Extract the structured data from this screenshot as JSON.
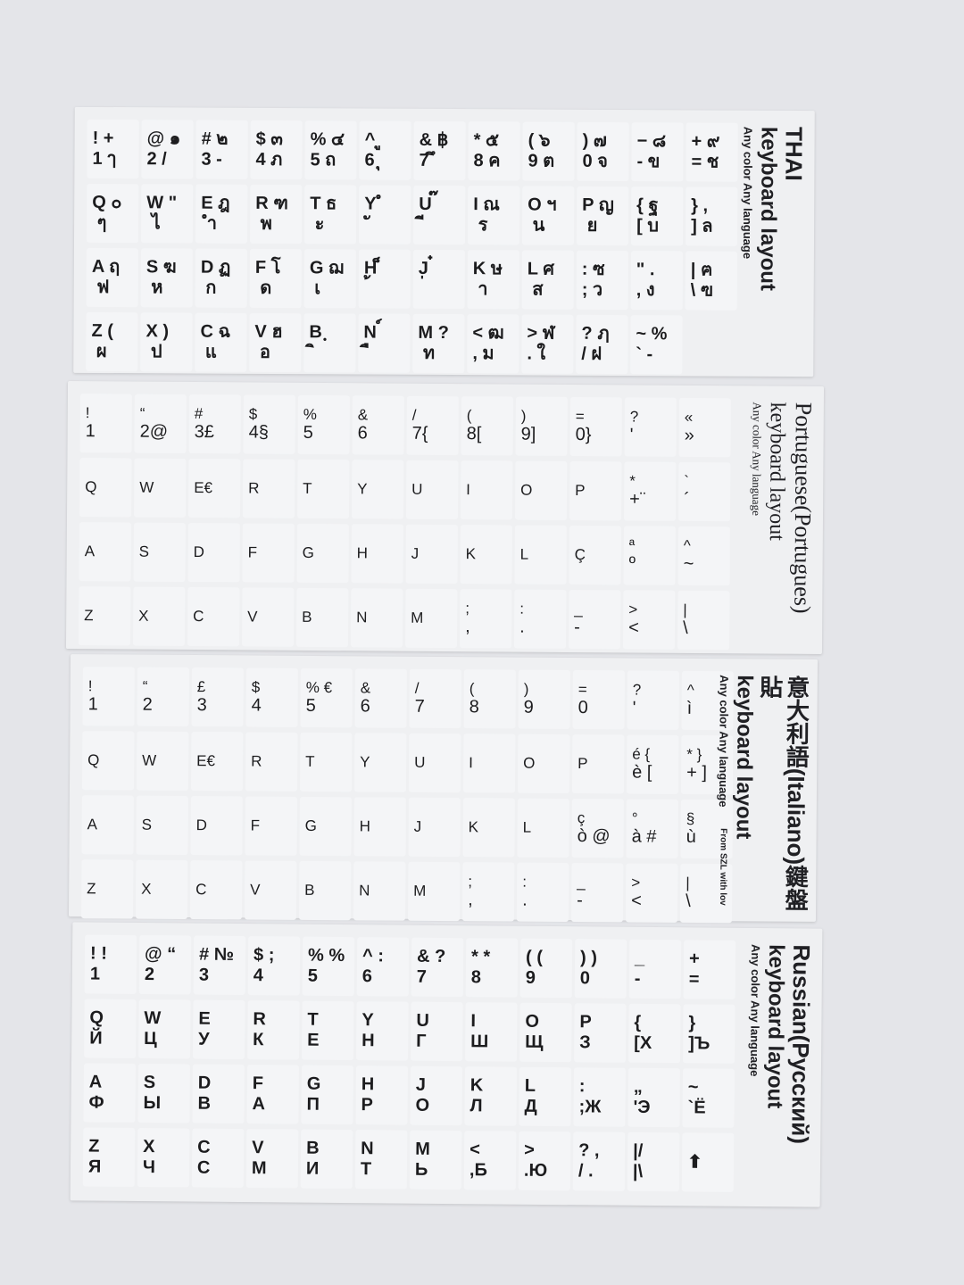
{
  "colors": {
    "background": "#e4e5e9",
    "sheet": "#eff0f2",
    "ink": "#1c1c1e"
  },
  "sheets": [
    {
      "title": "THAI",
      "subtitle": "keyboard layout",
      "tagline": "Any color Any language",
      "rows": [
        [
          [
            "! +",
            "1 ๅ"
          ],
          [
            "@ ๑",
            "2 /"
          ],
          [
            "# ๒",
            "3 -"
          ],
          [
            "$ ๓",
            "4 ภ"
          ],
          [
            "% ๔",
            "5 ถ"
          ],
          [
            "^ ู",
            "6 ุ"
          ],
          [
            "& ฿",
            "7 ึ"
          ],
          [
            "* ๕",
            "8 ค"
          ],
          [
            "( ๖",
            "9 ต"
          ],
          [
            ") ๗",
            "0 จ"
          ],
          [
            "− ๘",
            "- ข"
          ],
          [
            "+ ๙",
            "= ช"
          ]
        ],
        [
          [
            "Q ๐",
            " ๆ"
          ],
          [
            "W \"",
            " ไ"
          ],
          [
            "E ฎ",
            " ำ"
          ],
          [
            "R ฑ",
            " พ"
          ],
          [
            "T ธ",
            " ะ"
          ],
          [
            "Y ํ",
            " ั"
          ],
          [
            "U ๊",
            " ี"
          ],
          [
            "I ณ",
            " ร"
          ],
          [
            "O ฯ",
            " น"
          ],
          [
            "P ญ",
            " ย"
          ],
          [
            "{ ฐ",
            "[ บ"
          ],
          [
            "} ,",
            "] ล"
          ]
        ],
        [
          [
            "A ฤ",
            " ฟ"
          ],
          [
            "S ฆ",
            " ห"
          ],
          [
            "D ฏ",
            " ก"
          ],
          [
            "F โ",
            " ด"
          ],
          [
            "G ฌ",
            " เ"
          ],
          [
            "H ็",
            " ้"
          ],
          [
            "J ๋",
            " ่"
          ],
          [
            "K ษ",
            " า"
          ],
          [
            "L ศ",
            " ส"
          ],
          [
            ": ซ",
            "; ว"
          ],
          [
            "\" .",
            ", ง"
          ],
          [
            "| ฅ",
            "\\ ฃ"
          ]
        ],
        [
          [
            "Z (",
            " ผ"
          ],
          [
            "X )",
            " ป"
          ],
          [
            "C ฉ",
            " แ"
          ],
          [
            "V ฮ",
            " อ"
          ],
          [
            "B ฺ",
            " ิ"
          ],
          [
            "N ์",
            " ื"
          ],
          [
            "M ?",
            " ท"
          ],
          [
            "< ฒ",
            ", ม"
          ],
          [
            "> ฬ",
            ". ใ"
          ],
          [
            "? ฦ",
            "/ ฝ"
          ],
          [
            "~ %",
            "` -"
          ]
        ]
      ]
    },
    {
      "title": "Portuguese(Portugues)",
      "subtitle": "keyboard layout",
      "tagline": "Any color Any language",
      "rows": [
        [
          [
            "!",
            "1"
          ],
          [
            "“",
            "2@"
          ],
          [
            "#",
            "3£"
          ],
          [
            "$",
            "4§"
          ],
          [
            "%",
            "5"
          ],
          [
            "&",
            "6"
          ],
          [
            "/",
            "7{"
          ],
          [
            "(",
            "8["
          ],
          [
            ")",
            "9]"
          ],
          [
            "=",
            "0}"
          ],
          [
            "?",
            "'"
          ],
          [
            "«",
            "»"
          ]
        ],
        [
          [
            "Q",
            ""
          ],
          [
            "W",
            ""
          ],
          [
            "E€",
            ""
          ],
          [
            "R",
            ""
          ],
          [
            "T",
            ""
          ],
          [
            "Y",
            ""
          ],
          [
            "U",
            ""
          ],
          [
            "I",
            ""
          ],
          [
            "O",
            ""
          ],
          [
            "P",
            ""
          ],
          [
            "*",
            "+¨"
          ],
          [
            "`",
            "´"
          ]
        ],
        [
          [
            "A",
            ""
          ],
          [
            "S",
            ""
          ],
          [
            "D",
            ""
          ],
          [
            "F",
            ""
          ],
          [
            "G",
            ""
          ],
          [
            "H",
            ""
          ],
          [
            "J",
            ""
          ],
          [
            "K",
            ""
          ],
          [
            "L",
            ""
          ],
          [
            "Ç",
            ""
          ],
          [
            "ª",
            "º"
          ],
          [
            "^",
            "~"
          ]
        ],
        [
          [
            "Z",
            ""
          ],
          [
            "X",
            ""
          ],
          [
            "C",
            ""
          ],
          [
            "V",
            ""
          ],
          [
            "B",
            ""
          ],
          [
            "N",
            ""
          ],
          [
            "M",
            ""
          ],
          [
            ";",
            ","
          ],
          [
            ":",
            "."
          ],
          [
            "_",
            "-"
          ],
          [
            ">",
            "<"
          ],
          [
            "|",
            "\\"
          ]
        ]
      ]
    },
    {
      "title": "意大利語(Italiano)鍵盤貼",
      "subtitle": "keyboard layout",
      "tagline": "Any color Any language",
      "note": "From SZL with lov",
      "rows": [
        [
          [
            "!",
            "1"
          ],
          [
            "“",
            "2"
          ],
          [
            "£",
            "3"
          ],
          [
            "$",
            "4"
          ],
          [
            "% €",
            "5"
          ],
          [
            "&",
            "6"
          ],
          [
            "/",
            "7"
          ],
          [
            "(",
            "8"
          ],
          [
            ")",
            "9"
          ],
          [
            "=",
            "0"
          ],
          [
            "?",
            "'"
          ],
          [
            "^",
            "ì"
          ]
        ],
        [
          [
            "Q",
            ""
          ],
          [
            "W",
            ""
          ],
          [
            "E€",
            ""
          ],
          [
            "R",
            ""
          ],
          [
            "T",
            ""
          ],
          [
            "Y",
            ""
          ],
          [
            "U",
            ""
          ],
          [
            "I",
            ""
          ],
          [
            "O",
            ""
          ],
          [
            "P",
            ""
          ],
          [
            "é {",
            "è ["
          ],
          [
            "* }",
            "+ ]"
          ]
        ],
        [
          [
            "A",
            ""
          ],
          [
            "S",
            ""
          ],
          [
            "D",
            ""
          ],
          [
            "F",
            ""
          ],
          [
            "G",
            ""
          ],
          [
            "H",
            ""
          ],
          [
            "J",
            ""
          ],
          [
            "K",
            ""
          ],
          [
            "L",
            ""
          ],
          [
            "ç",
            "ò @"
          ],
          [
            "°",
            "à #"
          ],
          [
            "§",
            "ù"
          ]
        ],
        [
          [
            "Z",
            ""
          ],
          [
            "X",
            ""
          ],
          [
            "C",
            ""
          ],
          [
            "V",
            ""
          ],
          [
            "B",
            ""
          ],
          [
            "N",
            ""
          ],
          [
            "M",
            ""
          ],
          [
            ";",
            ","
          ],
          [
            ":",
            "."
          ],
          [
            "_",
            "-"
          ],
          [
            ">",
            "<"
          ],
          [
            "|",
            "\\"
          ]
        ]
      ]
    },
    {
      "title": "Russian(Русский)",
      "subtitle": "keyboard layout",
      "tagline": "Any color Any language",
      "rows": [
        [
          [
            "! !",
            "1"
          ],
          [
            "@ “",
            "2"
          ],
          [
            "# №",
            "3"
          ],
          [
            "$ ;",
            "4"
          ],
          [
            "% %",
            "5"
          ],
          [
            "^ :",
            "6"
          ],
          [
            "& ?",
            "7"
          ],
          [
            "* *",
            "8"
          ],
          [
            "( (",
            "9"
          ],
          [
            ") )",
            "0"
          ],
          [
            "_",
            "-"
          ],
          [
            "+",
            "="
          ]
        ],
        [
          [
            "Q",
            "Й"
          ],
          [
            "W",
            "Ц"
          ],
          [
            "E",
            "У"
          ],
          [
            "R",
            "К"
          ],
          [
            "T",
            "Е"
          ],
          [
            "Y",
            "Н"
          ],
          [
            "U",
            "Г"
          ],
          [
            "I",
            "Ш"
          ],
          [
            "O",
            "Щ"
          ],
          [
            "P",
            "З"
          ],
          [
            "{",
            "[Х"
          ],
          [
            "}",
            "]Ъ"
          ]
        ],
        [
          [
            "A",
            "Ф"
          ],
          [
            "S",
            "Ы"
          ],
          [
            "D",
            "В"
          ],
          [
            "F",
            "А"
          ],
          [
            "G",
            "П"
          ],
          [
            "H",
            "Р"
          ],
          [
            "J",
            "О"
          ],
          [
            "K",
            "Л"
          ],
          [
            "L",
            "Д"
          ],
          [
            ":",
            ";Ж"
          ],
          [
            "„",
            "'Э"
          ],
          [
            "~",
            "`Ё"
          ]
        ],
        [
          [
            "Z",
            "Я"
          ],
          [
            "X",
            "Ч"
          ],
          [
            "C",
            "С"
          ],
          [
            "V",
            "М"
          ],
          [
            "B",
            "И"
          ],
          [
            "N",
            "Т"
          ],
          [
            "M",
            "Ь"
          ],
          [
            "<",
            ",Б"
          ],
          [
            ">",
            ".Ю"
          ],
          [
            "? ,",
            "/ ."
          ],
          [
            "|/",
            "|\\"
          ],
          [
            "",
            "⬆"
          ]
        ]
      ]
    }
  ]
}
